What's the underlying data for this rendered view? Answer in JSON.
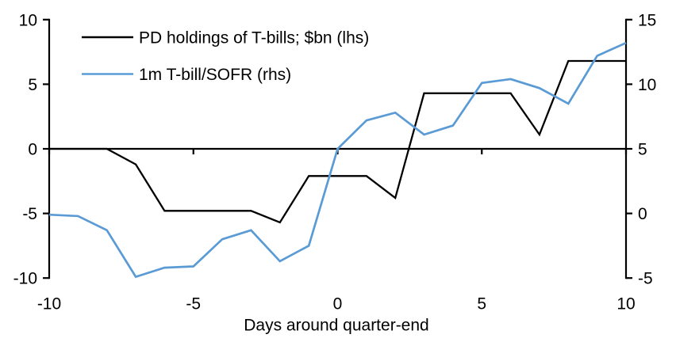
{
  "chart_data": {
    "type": "line",
    "title": "",
    "xlabel": "Days around quarter-end",
    "ylabel": "",
    "x": [
      -10,
      -9,
      -8,
      -7,
      -6,
      -5,
      -4,
      -3,
      -2,
      -1,
      0,
      1,
      2,
      3,
      4,
      5,
      6,
      7,
      8,
      9,
      10
    ],
    "x_ticks": [
      -10,
      -5,
      0,
      5,
      10
    ],
    "left_axis": {
      "ticks": [
        10,
        5,
        0,
        -5,
        -10
      ],
      "lim": [
        -10,
        10
      ]
    },
    "right_axis": {
      "ticks": [
        15,
        10,
        5,
        0,
        -5
      ],
      "lim": [
        -5,
        15
      ]
    },
    "zero_line": true,
    "grid": false,
    "legend_position": "top-left-inside",
    "series": [
      {
        "id": "pd-holdings",
        "name": "PD holdings of T-bills; $bn (lhs)",
        "axis": "left",
        "color": "#000000",
        "values": [
          0,
          0,
          0,
          -1.2,
          -4.8,
          -4.8,
          -4.8,
          -4.8,
          -5.7,
          -2.1,
          -2.1,
          -2.1,
          -3.8,
          4.3,
          4.3,
          4.3,
          4.3,
          1.1,
          6.8,
          6.8,
          6.8
        ]
      },
      {
        "id": "tbill-sofr",
        "name": "1m T-bill/SOFR (rhs)",
        "axis": "right",
        "color": "#5B9BD5",
        "values": [
          -0.1,
          -0.2,
          -1.3,
          -4.9,
          -4.2,
          -4.1,
          -2.0,
          -1.3,
          -3.7,
          -2.5,
          5.0,
          7.2,
          7.8,
          6.1,
          6.8,
          10.1,
          10.4,
          9.7,
          8.5,
          12.2,
          13.2
        ]
      }
    ],
    "colors": {
      "background": "#FFFFFF",
      "axis": "#000000",
      "text": "#000000"
    }
  }
}
